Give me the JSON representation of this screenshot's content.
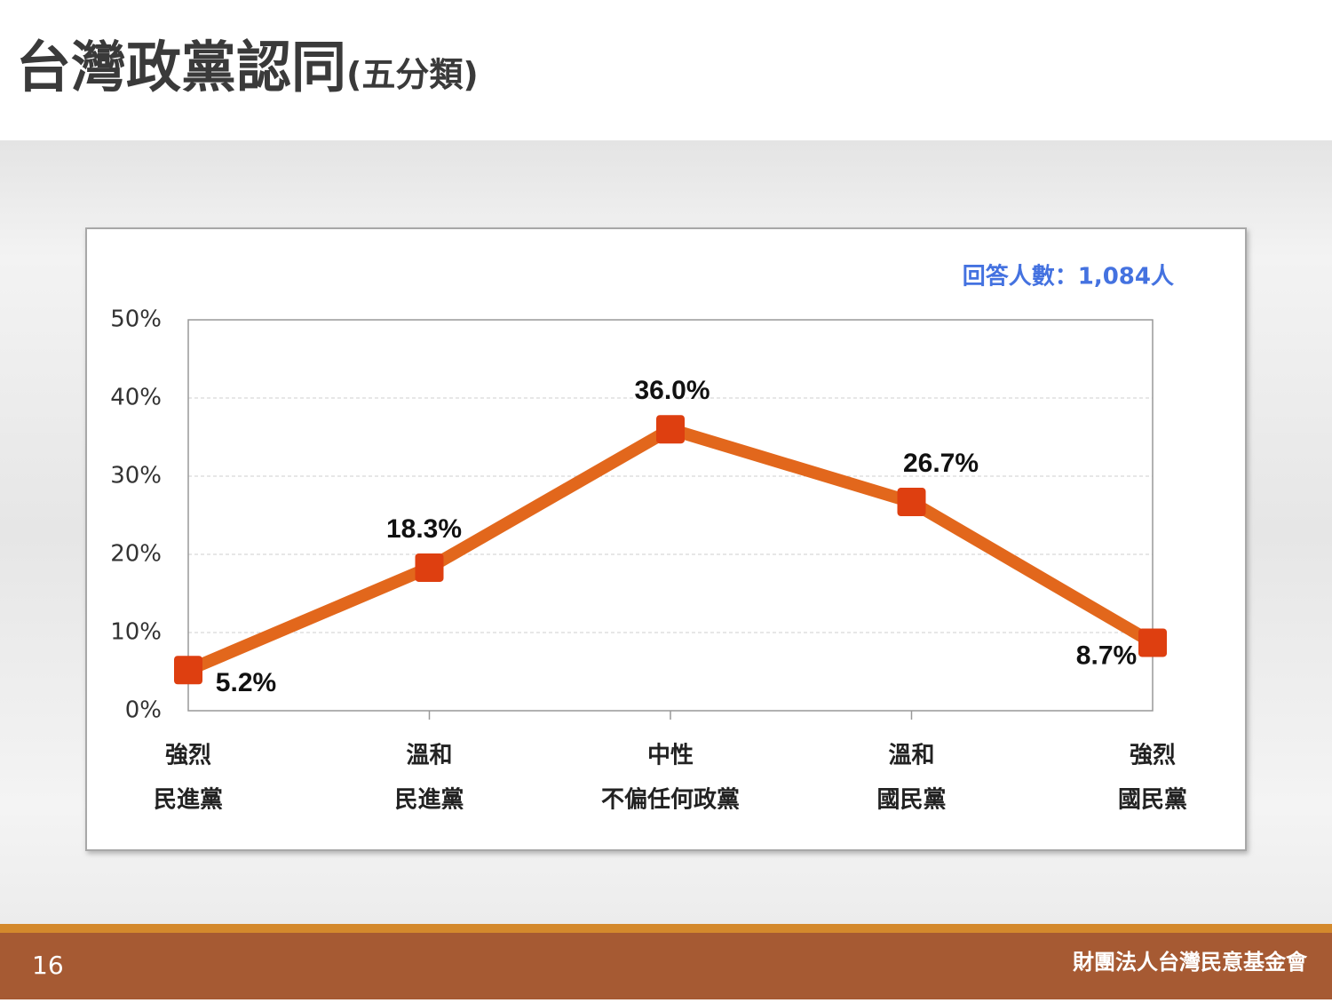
{
  "chart_data": {
    "type": "line",
    "title": "台灣政黨認同",
    "subtitle": "(五分類)",
    "annotation": "回答人數：1,084人",
    "categories": [
      [
        "強烈",
        "民進黨"
      ],
      [
        "溫和",
        "民進黨"
      ],
      [
        "中性",
        "不偏任何政黨"
      ],
      [
        "溫和",
        "國民黨"
      ],
      [
        "強烈",
        "國民黨"
      ]
    ],
    "values": [
      5.2,
      18.3,
      36.0,
      26.7,
      8.7
    ],
    "value_labels": [
      "5.2%",
      "18.3%",
      "36.0%",
      "26.7%",
      "8.7%"
    ],
    "color": "#e2671c",
    "marker_color": "#de3f10",
    "ylim": [
      0,
      50
    ],
    "yticks": [
      {
        "value": 0,
        "label": "0%"
      },
      {
        "value": 10,
        "label": "10%"
      },
      {
        "value": 20,
        "label": "20%"
      },
      {
        "value": 30,
        "label": "30%"
      },
      {
        "value": 40,
        "label": "40%"
      },
      {
        "value": 50,
        "label": "50%"
      }
    ],
    "grid": true
  },
  "footer": {
    "page_number": "16",
    "organization": "財團法人台灣民意基金會"
  }
}
